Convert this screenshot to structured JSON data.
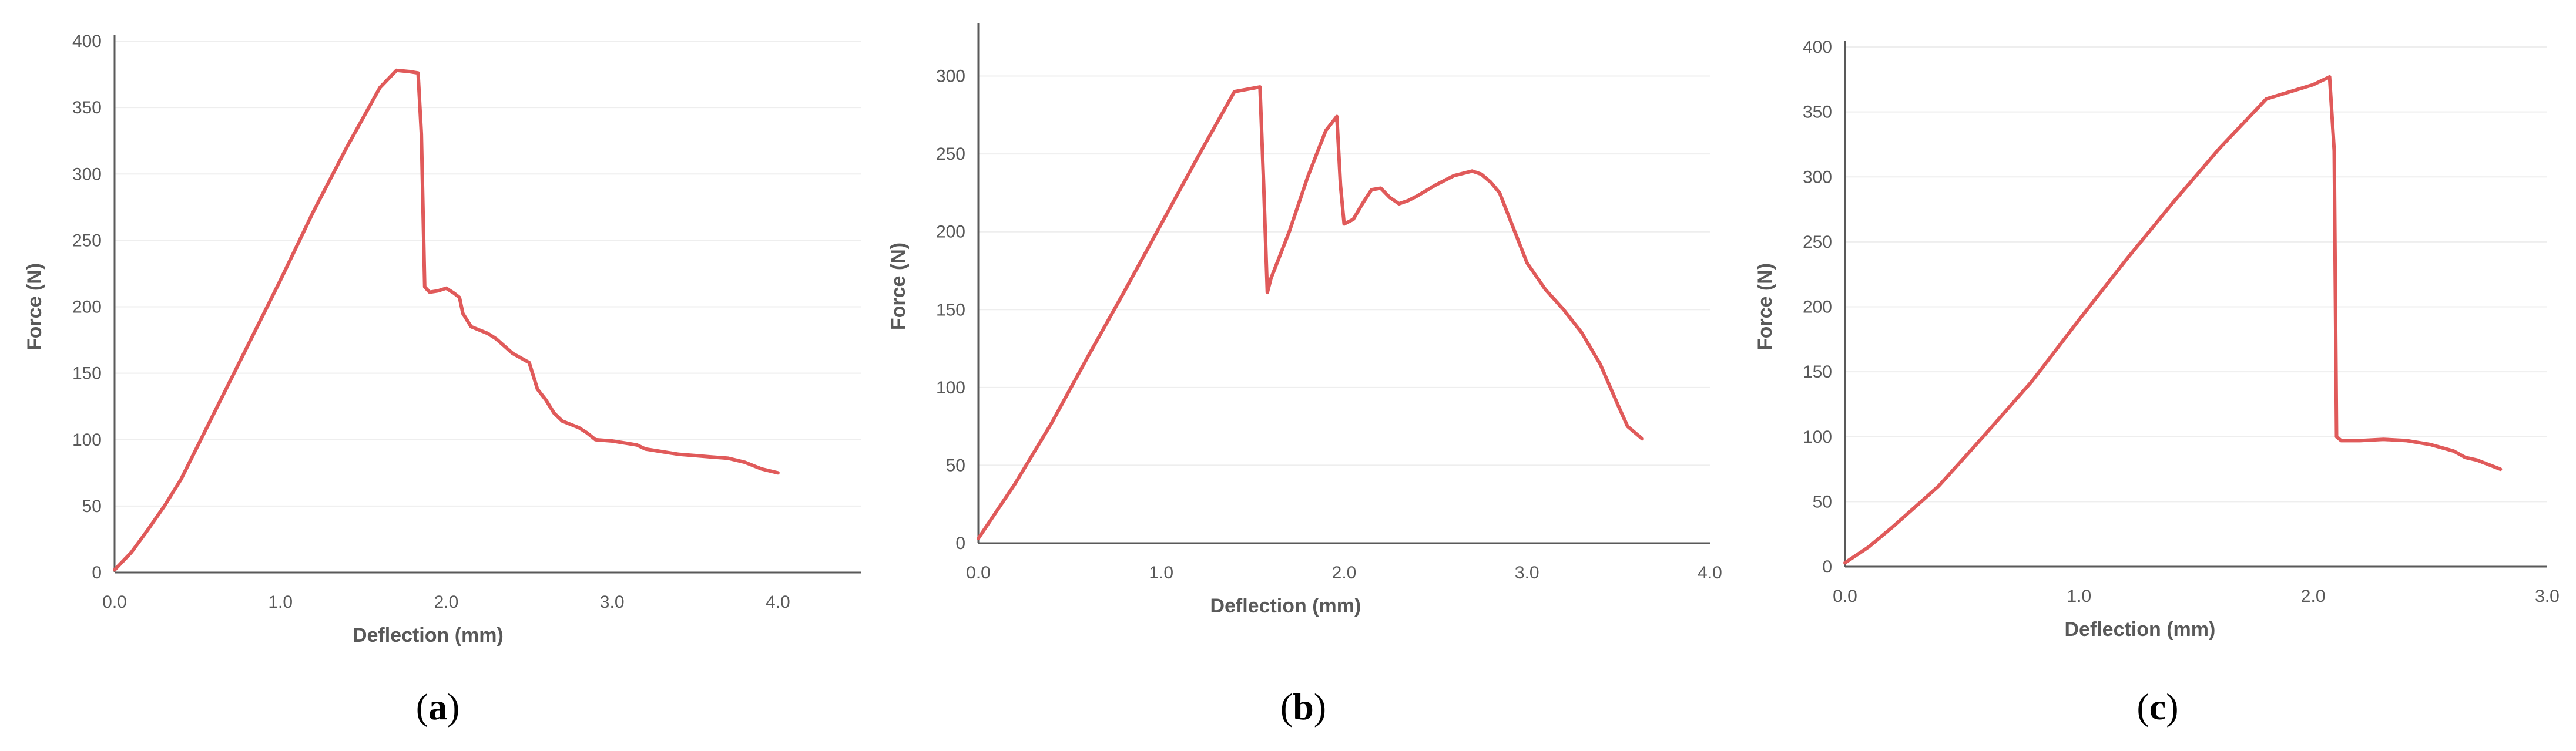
{
  "colors": {
    "line": "#e05a5a",
    "axis": "#595959",
    "grid": "#eeeeee",
    "text": "#595959"
  },
  "chart_data": [
    {
      "type": "line",
      "panel_label": "a",
      "label_open": "(",
      "label_close": ")",
      "xlabel": "Deflection (mm)",
      "ylabel": "Force (N)",
      "xlim": [
        0,
        4.5
      ],
      "ylim": [
        0,
        400
      ],
      "xticks": [
        0,
        1,
        2,
        3,
        4
      ],
      "xtick_labels": [
        "0.0",
        "1.0",
        "2.0",
        "3.0",
        "4.0"
      ],
      "yticks": [
        0,
        50,
        100,
        150,
        200,
        250,
        300,
        350,
        400
      ],
      "ytick_labels": [
        "0",
        "50",
        "100",
        "150",
        "200",
        "250",
        "300",
        "350",
        "400"
      ],
      "grid": true,
      "series": [
        {
          "name": "a",
          "x": [
            0,
            0.1,
            0.2,
            0.3,
            0.4,
            0.5,
            0.6,
            0.8,
            1.0,
            1.2,
            1.4,
            1.6,
            1.7,
            1.78,
            1.83,
            1.85,
            1.87,
            1.9,
            1.95,
            2.0,
            2.05,
            2.08,
            2.1,
            2.15,
            2.25,
            2.3,
            2.4,
            2.5,
            2.55,
            2.6,
            2.65,
            2.7,
            2.8,
            2.85,
            2.9,
            3.0,
            3.1,
            3.15,
            3.2,
            3.3,
            3.4,
            3.5,
            3.6,
            3.7,
            3.8,
            3.9,
            4.0
          ],
          "y": [
            2,
            15,
            32,
            50,
            70,
            95,
            120,
            170,
            220,
            272,
            320,
            365,
            378,
            377,
            376,
            330,
            215,
            211,
            212,
            214,
            210,
            207,
            195,
            185,
            180,
            176,
            165,
            158,
            138,
            130,
            120,
            114,
            109,
            105,
            100,
            99,
            97,
            96,
            93,
            91,
            89,
            88,
            87,
            86,
            83,
            78,
            75
          ]
        }
      ]
    },
    {
      "type": "line",
      "panel_label": "b",
      "label_open": "(",
      "label_close": ")",
      "xlabel": "Deflection (mm)",
      "ylabel": "Force (N)",
      "xlim": [
        0,
        4
      ],
      "ylim": [
        0,
        330
      ],
      "xticks": [
        0,
        1,
        2,
        3,
        4
      ],
      "xtick_labels": [
        "0.0",
        "1.0",
        "2.0",
        "3.0",
        "4.0"
      ],
      "yticks": [
        0,
        50,
        100,
        150,
        200,
        250,
        300
      ],
      "ytick_labels": [
        "0",
        "50",
        "100",
        "150",
        "200",
        "250",
        "300"
      ],
      "grid": true,
      "series": [
        {
          "name": "b",
          "x": [
            0,
            0.2,
            0.4,
            0.6,
            0.8,
            1.0,
            1.2,
            1.4,
            1.54,
            1.56,
            1.58,
            1.6,
            1.7,
            1.8,
            1.9,
            1.96,
            1.98,
            2.0,
            2.05,
            2.1,
            2.15,
            2.2,
            2.25,
            2.3,
            2.35,
            2.4,
            2.5,
            2.6,
            2.7,
            2.75,
            2.8,
            2.85,
            2.9,
            3.0,
            3.1,
            3.2,
            3.3,
            3.4,
            3.5,
            3.55,
            3.6,
            3.63
          ],
          "y": [
            3,
            38,
            77,
            120,
            162,
            205,
            248,
            290,
            293,
            230,
            161,
            170,
            200,
            235,
            265,
            274,
            230,
            205,
            208,
            218,
            227,
            228,
            222,
            218,
            220,
            223,
            230,
            236,
            239,
            237,
            232,
            225,
            210,
            180,
            163,
            150,
            135,
            115,
            88,
            75,
            70,
            67
          ]
        }
      ]
    },
    {
      "type": "line",
      "panel_label": "c",
      "label_open": "(",
      "label_close": ")",
      "xlabel": "Deflection (mm)",
      "ylabel": "Force (N)",
      "xlim": [
        0,
        3
      ],
      "ylim": [
        0,
        400
      ],
      "xticks": [
        0,
        1,
        2,
        3
      ],
      "xtick_labels": [
        "0.0",
        "1.0",
        "2.0",
        "3.0"
      ],
      "yticks": [
        0,
        50,
        100,
        150,
        200,
        250,
        300,
        350,
        400
      ],
      "ytick_labels": [
        "0",
        "50",
        "100",
        "150",
        "200",
        "250",
        "300",
        "350",
        "400"
      ],
      "grid": true,
      "series": [
        {
          "name": "c",
          "x": [
            0,
            0.1,
            0.2,
            0.3,
            0.4,
            0.5,
            0.6,
            0.8,
            1.0,
            1.2,
            1.4,
            1.6,
            1.8,
            2.0,
            2.07,
            2.09,
            2.1,
            2.12,
            2.2,
            2.3,
            2.4,
            2.5,
            2.6,
            2.65,
            2.7,
            2.8
          ],
          "y": [
            3,
            15,
            30,
            46,
            62,
            82,
            102,
            143,
            190,
            236,
            280,
            322,
            360,
            371,
            377,
            320,
            100,
            97,
            97,
            98,
            97,
            94,
            89,
            84,
            82,
            75
          ]
        }
      ]
    }
  ]
}
